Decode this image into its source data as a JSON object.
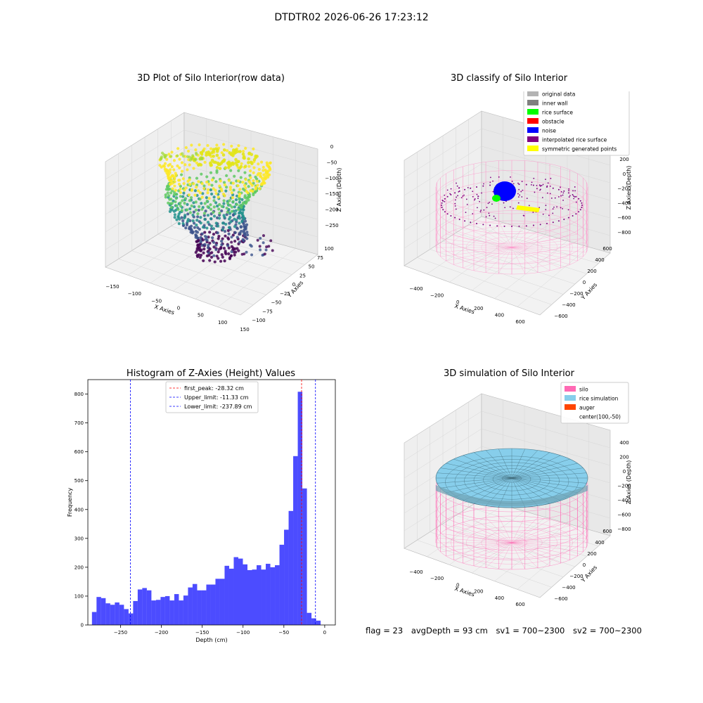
{
  "suptitle": "DTDTR02 2026-06-26 17:23:12",
  "panels": {
    "raw": {
      "title": "3D Plot of Silo Interior(row data)",
      "xlabel": "X Axies",
      "ylabel": "Y Axies",
      "zlabel": "Z Axies (Depth)",
      "xticks": [
        "-150",
        "-100",
        "-50",
        "0",
        "50",
        "100",
        "150"
      ],
      "yticks": [
        "-100",
        "-75",
        "-50",
        "-25",
        "0",
        "25",
        "50",
        "75",
        "100"
      ],
      "zticks": [
        "0",
        "-50",
        "-100",
        "-150",
        "-200",
        "-250"
      ]
    },
    "classify": {
      "title": "3D classify of Silo Interior",
      "xlabel": "X Axies",
      "ylabel": "Y Axies",
      "zlabel": "Z Axies (Depth)",
      "xticks": [
        "-400",
        "-200",
        "0",
        "200",
        "400",
        "600"
      ],
      "yticks": [
        "-600",
        "-400",
        "-200",
        "0",
        "200",
        "400",
        "600"
      ],
      "zticks": [
        "200",
        "0",
        "-200",
        "-400",
        "-600",
        "-800"
      ],
      "legend": [
        {
          "label": "original data",
          "color": "#b3b3b3"
        },
        {
          "label": "inner wall",
          "color": "#808080"
        },
        {
          "label": "rice surface",
          "color": "#00ff00"
        },
        {
          "label": "obstacle",
          "color": "#ff0000"
        },
        {
          "label": "noise",
          "color": "#0000ff"
        },
        {
          "label": "interpolated rice surface",
          "color": "#800080"
        },
        {
          "label": "symmetric generated points",
          "color": "#ffff00"
        }
      ]
    },
    "simulation": {
      "title": "3D simulation of Silo Interior",
      "xlabel": "X Axies",
      "ylabel": "Y Axies",
      "zlabel": "Z Axies (Depth)",
      "xticks": [
        "-400",
        "-200",
        "0",
        "200",
        "400",
        "600"
      ],
      "yticks": [
        "-600",
        "-400",
        "-200",
        "0",
        "200",
        "400",
        "600"
      ],
      "zticks": [
        "400",
        "200",
        "0",
        "-200",
        "-400",
        "-600",
        "-800"
      ],
      "legend": [
        {
          "label": "silo",
          "color": "#ff69b4"
        },
        {
          "label": "rice simulation",
          "color": "#87ceeb"
        },
        {
          "label": "auger",
          "color": "#ff4500"
        },
        {
          "label": "center(100,-50)",
          "color": ""
        }
      ]
    }
  },
  "footer": {
    "flag": "flag = 23",
    "avg": "avgDepth = 93 cm",
    "sv1": "sv1 = 700~2300",
    "sv2": "sv2 = 700~2300"
  },
  "chart_data": {
    "type": "bar",
    "title": "Histogram of Z-Axies (Height) Values",
    "xlabel": "Depth (cm)",
    "ylabel": "Frequency",
    "xlim": [
      -290,
      13
    ],
    "ylim": [
      0,
      850
    ],
    "xticks": [
      -250,
      -200,
      -150,
      -100,
      -50,
      0
    ],
    "yticks": [
      0,
      100,
      200,
      300,
      400,
      500,
      600,
      700,
      800
    ],
    "bin_width": 5.6,
    "bin_start": -285,
    "color": "#0000ff",
    "counts": [
      45,
      97,
      93,
      75,
      70,
      78,
      70,
      55,
      40,
      83,
      123,
      128,
      120,
      85,
      87,
      97,
      100,
      85,
      107,
      85,
      102,
      130,
      142,
      120,
      120,
      140,
      140,
      160,
      160,
      205,
      195,
      235,
      230,
      210,
      190,
      192,
      207,
      192,
      212,
      200,
      207,
      278,
      330,
      395,
      585,
      808,
      473,
      42,
      23,
      15
    ],
    "lines": [
      {
        "label": "first_peak: -28.32 cm",
        "value": -28.32,
        "color": "#ff0000"
      },
      {
        "label": "Upper_limit: -11.33 cm",
        "value": -11.33,
        "color": "#0000ff"
      },
      {
        "label": "Lower_limit: -237.89 cm",
        "value": -237.89,
        "color": "#0000ff"
      }
    ]
  }
}
